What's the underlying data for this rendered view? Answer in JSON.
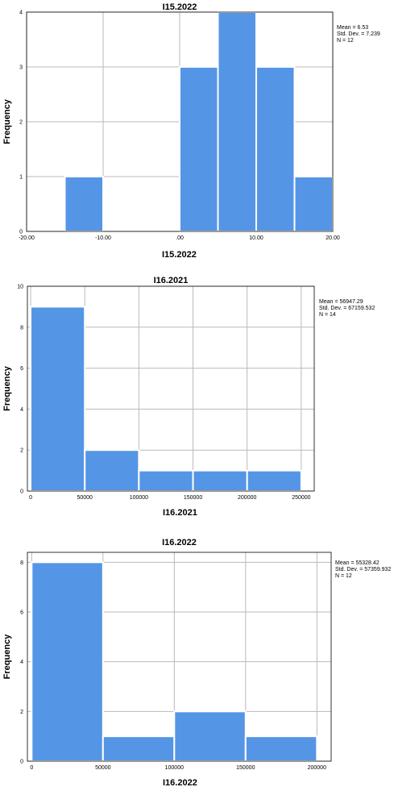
{
  "colors": {
    "bar": "#5595e5",
    "grid": "#b9b9b9"
  },
  "chart_data": [
    {
      "type": "bar",
      "title": "I15.2022",
      "xlabel": "I15.2022",
      "ylabel": "Frequency",
      "bins": [
        [
          -15,
          -10
        ],
        [
          -10,
          -5
        ],
        [
          -5,
          0
        ],
        [
          0,
          5
        ],
        [
          5,
          10
        ],
        [
          10,
          15
        ],
        [
          15,
          20
        ]
      ],
      "values": [
        1,
        0,
        0,
        3,
        4,
        3,
        1
      ],
      "xlim": [
        -20,
        20
      ],
      "ylim": [
        0,
        4
      ],
      "x_ticks": [
        -20,
        -10,
        0,
        10,
        20
      ],
      "x_tick_labels": [
        "-20.00",
        "-10.00",
        ".00",
        "10.00",
        "20.00"
      ],
      "y_ticks": [
        0,
        1,
        2,
        3,
        4
      ],
      "y_tick_labels": [
        "0",
        "1",
        "2",
        "3",
        "4"
      ],
      "stats": [
        "Mean = 6.53",
        "Std. Dev. = 7.239",
        "N = 12"
      ],
      "grid": true,
      "legend": "top-right"
    },
    {
      "type": "bar",
      "title": "I16.2021",
      "xlabel": "I16.2021",
      "ylabel": "Frequency",
      "bins": [
        [
          0,
          50000
        ],
        [
          50000,
          100000
        ],
        [
          100000,
          150000
        ],
        [
          150000,
          200000
        ],
        [
          200000,
          250000
        ]
      ],
      "values": [
        9,
        2,
        1,
        1,
        1
      ],
      "xlim": [
        -3000,
        262000
      ],
      "ylim": [
        0,
        10
      ],
      "x_ticks": [
        0,
        50000,
        100000,
        150000,
        200000,
        250000
      ],
      "x_tick_labels": [
        "0",
        "50000",
        "100000",
        "150000",
        "200000",
        "250000"
      ],
      "y_ticks": [
        0,
        2,
        4,
        6,
        8,
        10
      ],
      "y_tick_labels": [
        "0",
        "2",
        "4",
        "6",
        "8",
        "10"
      ],
      "stats": [
        "Mean = 56947.29",
        "Std. Dev. = 67159.532",
        "N = 14"
      ],
      "grid": true,
      "legend": "top-right"
    },
    {
      "type": "bar",
      "title": "I16.2022",
      "xlabel": "I16.2022",
      "ylabel": "Frequency",
      "bins": [
        [
          0,
          50000
        ],
        [
          50000,
          100000
        ],
        [
          100000,
          150000
        ],
        [
          150000,
          200000
        ]
      ],
      "values": [
        8,
        1,
        2,
        1
      ],
      "xlim": [
        -3000,
        210000
      ],
      "ylim": [
        0,
        8.4
      ],
      "x_ticks": [
        0,
        50000,
        100000,
        150000,
        200000
      ],
      "x_tick_labels": [
        "0",
        "50000",
        "100000",
        "150000",
        "200000"
      ],
      "y_ticks": [
        0,
        2,
        4,
        6,
        8
      ],
      "y_tick_labels": [
        "0",
        "2",
        "4",
        "6",
        "8"
      ],
      "stats": [
        "Mean = 55328.42",
        "Std. Dev. = 57359.932",
        "N = 12"
      ],
      "grid": true,
      "legend": "top-right"
    }
  ]
}
